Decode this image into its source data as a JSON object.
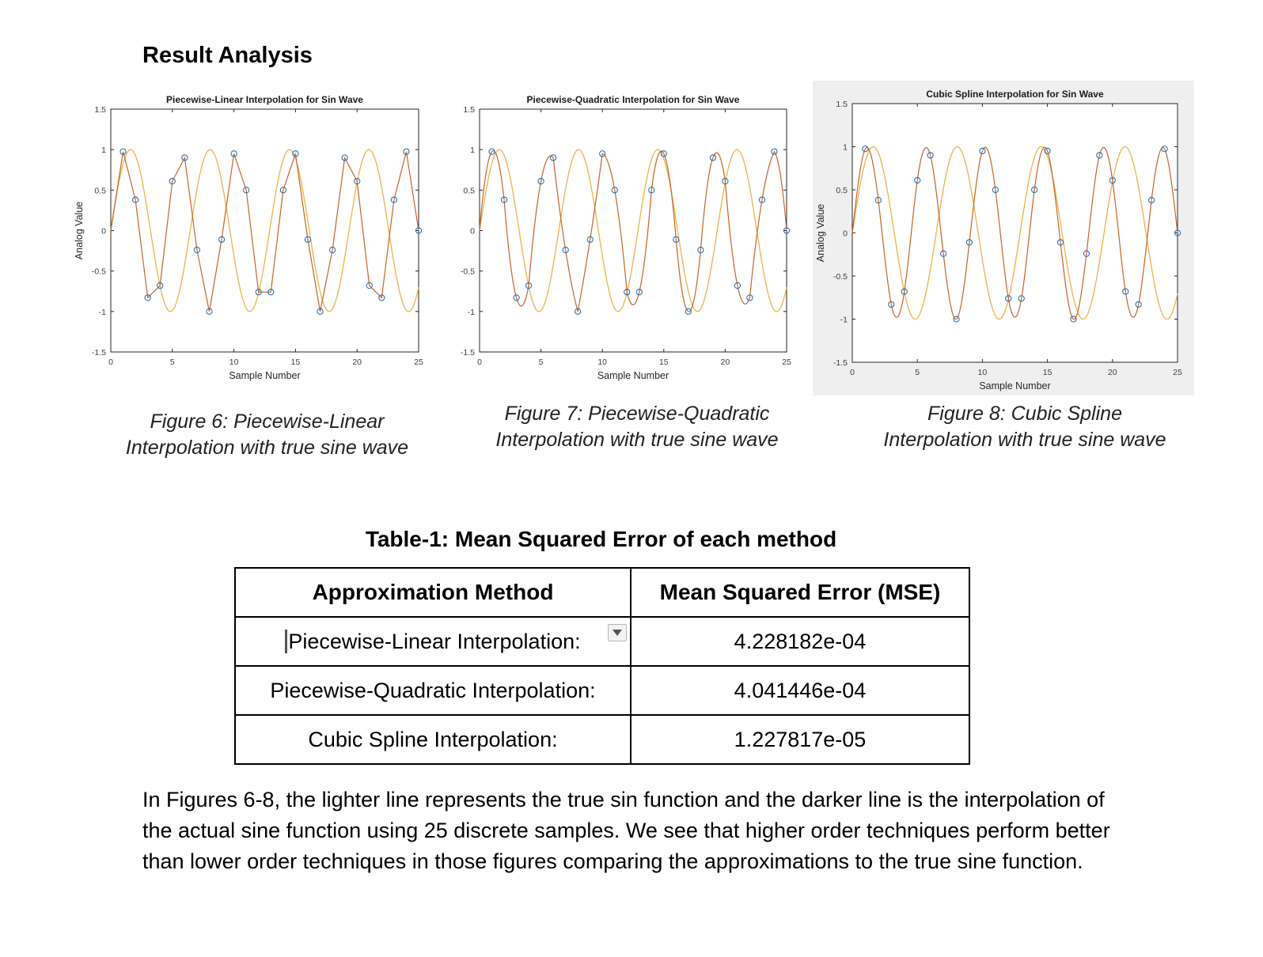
{
  "heading": "Result Analysis",
  "chart_data": [
    {
      "type": "line",
      "title": "Piecewise-Linear Interpolation for Sin Wave",
      "xlabel": "Sample Number",
      "ylabel": "Analog Value",
      "xlim": [
        0,
        25
      ],
      "ylim": [
        -1.5,
        1.5
      ],
      "xticks": [
        "0",
        "5",
        "10",
        "15",
        "20",
        "25"
      ],
      "yticks": [
        "-1.5",
        "-1",
        "-0.5",
        "0",
        "0.5",
        "1",
        "1.5"
      ],
      "samples_x": [
        1,
        2,
        3,
        4,
        5,
        6,
        7,
        8,
        9,
        10,
        11,
        12,
        13,
        14,
        15,
        16,
        17,
        18,
        19,
        20,
        21,
        22,
        23,
        24,
        25
      ],
      "samples_y": [
        0.975,
        0.38,
        -0.83,
        -0.68,
        0.61,
        0.9,
        -0.24,
        -1.0,
        -0.11,
        0.95,
        0.5,
        -0.76,
        -0.76,
        0.5,
        0.95,
        -0.11,
        -1.0,
        -0.24,
        0.9,
        0.61,
        -0.68,
        -0.83,
        0.38,
        0.975,
        0.0
      ],
      "series": [
        {
          "color": "#f0b34a",
          "values": "true sine"
        },
        {
          "color": "#c86428",
          "values": "linear interpolation of samples"
        }
      ],
      "markers_color": "#2b73b8",
      "grid": false
    },
    {
      "type": "line",
      "title": "Piecewise-Quadratic Interpolation for Sin Wave",
      "xlabel": "Sample Number",
      "ylabel": "",
      "xlim": [
        0,
        25
      ],
      "ylim": [
        -1.5,
        1.5
      ],
      "xticks": [
        "0",
        "5",
        "10",
        "15",
        "20",
        "25"
      ],
      "yticks": [
        "-1.5",
        "-1",
        "-0.5",
        "0",
        "0.5",
        "1",
        "1.5"
      ],
      "samples_x": [
        1,
        2,
        3,
        4,
        5,
        6,
        7,
        8,
        9,
        10,
        11,
        12,
        13,
        14,
        15,
        16,
        17,
        18,
        19,
        20,
        21,
        22,
        23,
        24,
        25
      ],
      "samples_y": [
        0.975,
        0.38,
        -0.83,
        -0.68,
        0.61,
        0.9,
        -0.24,
        -1.0,
        -0.11,
        0.95,
        0.5,
        -0.76,
        -0.76,
        0.5,
        0.95,
        -0.11,
        -1.0,
        -0.24,
        0.9,
        0.61,
        -0.68,
        -0.83,
        0.38,
        0.975,
        0.0
      ],
      "series": [
        {
          "color": "#f0b34a",
          "values": "true sine"
        },
        {
          "color": "#c86428",
          "values": "quadratic interpolation of samples"
        }
      ],
      "markers_color": "#2b73b8",
      "grid": false
    },
    {
      "type": "line",
      "title": "Cubic Spline Interpolation for Sin Wave",
      "xlabel": "Sample Number",
      "ylabel": "Analog Value",
      "xlim": [
        0,
        25
      ],
      "ylim": [
        -1.5,
        1.5
      ],
      "xticks": [
        "0",
        "5",
        "10",
        "15",
        "20",
        "25"
      ],
      "yticks": [
        "-1.5",
        "-1",
        "-0.5",
        "0",
        "0.5",
        "1",
        "1.5"
      ],
      "samples_x": [
        1,
        2,
        3,
        4,
        5,
        6,
        7,
        8,
        9,
        10,
        11,
        12,
        13,
        14,
        15,
        16,
        17,
        18,
        19,
        20,
        21,
        22,
        23,
        24,
        25
      ],
      "samples_y": [
        0.975,
        0.38,
        -0.83,
        -0.68,
        0.61,
        0.9,
        -0.24,
        -1.0,
        -0.11,
        0.95,
        0.5,
        -0.76,
        -0.76,
        0.5,
        0.95,
        -0.11,
        -1.0,
        -0.24,
        0.9,
        0.61,
        -0.68,
        -0.83,
        0.38,
        0.975,
        0.0
      ],
      "series": [
        {
          "color": "#f0b34a",
          "values": "true sine"
        },
        {
          "color": "#c86428",
          "values": "cubic spline of samples"
        }
      ],
      "markers_color": "#2b73b8",
      "grid": false
    }
  ],
  "captions": [
    {
      "line1": "Figure 6: Piecewise-Linear",
      "line2": "Interpolation with true sine wave"
    },
    {
      "line1": "Figure 7: Piecewise-Quadratic",
      "line2": "Interpolation with true sine wave"
    },
    {
      "line1": "Figure 8: Cubic Spline",
      "line2": "Interpolation with true sine wave"
    }
  ],
  "table": {
    "title": "Table-1: Mean Squared Error of each method",
    "headers": [
      "Approximation Method",
      "Mean Squared Error (MSE)"
    ],
    "rows": [
      [
        "Piecewise-Linear Interpolation:",
        "4.228182e-04"
      ],
      [
        "Piecewise-Quadratic Interpolation:",
        "4.041446e-04"
      ],
      [
        "Cubic Spline Interpolation:",
        "1.227817e-05"
      ]
    ]
  },
  "paragraph": "In Figures 6-8, the lighter line represents the true sin function and the darker line is the interpolation of the actual sine function using 25 discrete samples. We see that higher order techniques perform better than lower order techniques in those figures comparing the approximations to the true sine function."
}
